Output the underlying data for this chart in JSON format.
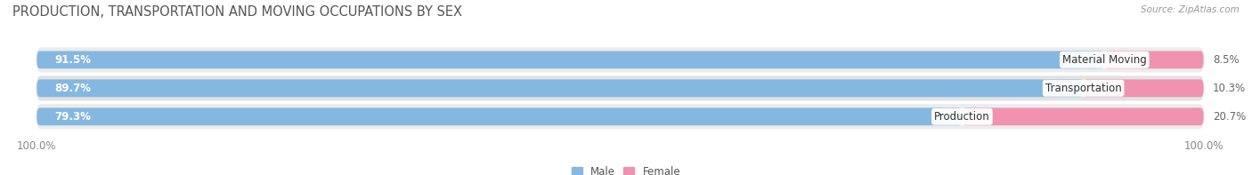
{
  "title": "PRODUCTION, TRANSPORTATION AND MOVING OCCUPATIONS BY SEX",
  "source": "Source: ZipAtlas.com",
  "categories": [
    "Material Moving",
    "Transportation",
    "Production"
  ],
  "male_values": [
    91.5,
    89.7,
    79.3
  ],
  "female_values": [
    8.5,
    10.3,
    20.7
  ],
  "male_color": "#85b8e0",
  "female_color": "#f093b0",
  "row_bg_color_odd": "#ececec",
  "row_bg_color_even": "#e2e2e2",
  "background_color": "#ffffff",
  "title_fontsize": 10.5,
  "source_fontsize": 7.5,
  "bar_label_fontsize": 8.5,
  "category_label_fontsize": 8.5,
  "axis_label_fontsize": 8.5,
  "legend_fontsize": 8.5
}
